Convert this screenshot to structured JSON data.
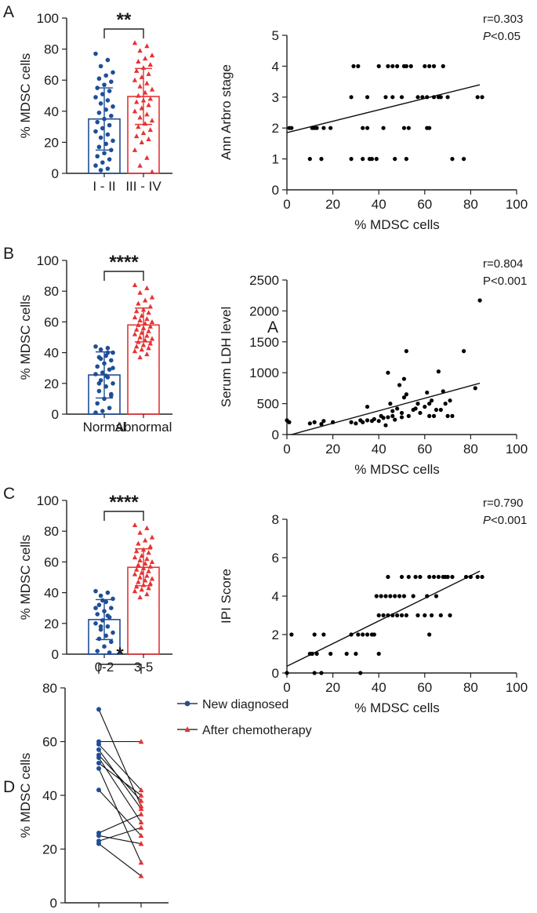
{
  "panels": [
    "A",
    "B",
    "C",
    "D"
  ],
  "stray_label": "A",
  "colors": {
    "blue": "#1f4e96",
    "red": "#e63333",
    "axis": "#222222",
    "dot": "#000000"
  },
  "chart_data": [
    {
      "id": "A-bar",
      "type": "bar",
      "panel": "A",
      "ylabel": "% MDSC cells",
      "ylim": [
        0,
        100
      ],
      "yticks": [
        "0",
        "20",
        "40",
        "60",
        "80",
        "100"
      ],
      "categories": [
        "I - II",
        "III - IV"
      ],
      "values": [
        35,
        49.5
      ],
      "sd": [
        20,
        18
      ],
      "significance": "**",
      "points": [
        [
          77,
          73,
          69,
          65,
          63,
          61,
          59,
          57,
          55,
          53,
          51,
          49,
          47,
          45,
          43,
          41,
          39,
          37,
          35,
          33,
          31,
          29,
          27,
          25,
          23,
          21,
          19,
          17,
          15,
          13,
          11,
          9,
          7,
          5,
          3,
          2
        ],
        [
          84,
          82,
          79,
          76,
          74,
          72,
          70,
          68,
          66,
          64,
          62,
          60,
          58,
          56,
          54,
          52,
          50,
          48,
          47,
          46,
          44,
          42,
          40,
          38,
          36,
          34,
          32,
          30,
          28,
          26,
          24,
          22,
          20,
          15,
          10,
          5,
          1
        ]
      ]
    },
    {
      "id": "A-scatter",
      "type": "scatter",
      "panel": "A",
      "xlabel": "% MDSC cells",
      "ylabel": "Ann Arbro stage",
      "xlim": [
        0,
        100
      ],
      "ylim": [
        0,
        5
      ],
      "xticks": [
        "0",
        "20",
        "40",
        "60",
        "80",
        "100"
      ],
      "yticks": [
        "0",
        "1",
        "2",
        "3",
        "4",
        "5"
      ],
      "stat_r": "r=0.303",
      "stat_p_label": "P",
      "stat_p_rest": "<0.05",
      "fit": {
        "x": [
          0,
          84
        ],
        "y": [
          1.85,
          3.4
        ]
      },
      "points": [
        [
          1,
          2
        ],
        [
          2,
          2
        ],
        [
          10,
          1
        ],
        [
          11,
          2
        ],
        [
          12,
          2
        ],
        [
          13,
          2
        ],
        [
          15,
          1
        ],
        [
          16,
          2
        ],
        [
          19,
          2
        ],
        [
          28,
          3
        ],
        [
          28,
          1
        ],
        [
          29,
          4
        ],
        [
          31,
          4
        ],
        [
          33,
          2
        ],
        [
          33,
          1
        ],
        [
          35,
          2
        ],
        [
          35,
          3
        ],
        [
          36,
          1
        ],
        [
          37,
          1
        ],
        [
          39,
          1
        ],
        [
          40,
          4
        ],
        [
          42,
          2
        ],
        [
          43,
          3
        ],
        [
          44,
          4
        ],
        [
          46,
          3
        ],
        [
          46,
          4
        ],
        [
          47,
          1
        ],
        [
          48,
          4
        ],
        [
          50,
          3
        ],
        [
          51,
          4
        ],
        [
          51,
          2
        ],
        [
          52,
          4
        ],
        [
          52,
          1
        ],
        [
          53,
          2
        ],
        [
          54,
          4
        ],
        [
          57,
          3
        ],
        [
          59,
          3
        ],
        [
          60,
          4
        ],
        [
          61,
          2
        ],
        [
          61,
          3
        ],
        [
          62,
          2
        ],
        [
          62,
          4
        ],
        [
          64,
          3
        ],
        [
          64,
          4
        ],
        [
          66,
          3
        ],
        [
          67,
          3
        ],
        [
          68,
          4
        ],
        [
          70,
          3
        ],
        [
          72,
          1
        ],
        [
          77,
          1
        ],
        [
          83,
          3
        ],
        [
          85,
          3
        ]
      ]
    },
    {
      "id": "B-bar",
      "type": "bar",
      "panel": "B",
      "ylabel": "% MDSC cells",
      "ylim": [
        0,
        100
      ],
      "yticks": [
        "0",
        "20",
        "40",
        "60",
        "80",
        "100"
      ],
      "categories": [
        "Normal",
        "Abnormal"
      ],
      "values": [
        25.5,
        58
      ],
      "sd": [
        15,
        11
      ],
      "significance": "****",
      "points": [
        [
          44,
          43,
          42,
          40,
          38,
          37,
          35,
          33,
          31,
          29,
          27,
          26,
          24,
          22,
          20,
          18,
          15,
          13,
          10,
          7,
          4,
          2,
          1,
          40,
          36,
          30,
          25,
          20,
          12
        ],
        [
          84,
          82,
          79,
          76,
          74,
          72,
          70,
          68,
          67,
          66,
          64,
          63,
          62,
          61,
          60,
          59,
          58,
          57,
          56,
          55,
          54,
          53,
          52,
          51,
          50,
          49,
          48,
          47,
          46,
          45,
          44,
          43,
          42,
          41,
          39,
          37
        ]
      ]
    },
    {
      "id": "B-scatter",
      "type": "scatter",
      "panel": "B",
      "xlabel": "% MDSC cells",
      "ylabel": "Serum LDH level",
      "xlim": [
        0,
        100
      ],
      "ylim": [
        0,
        2500
      ],
      "xticks": [
        "0",
        "20",
        "40",
        "60",
        "80",
        "100"
      ],
      "yticks": [
        "0",
        "500",
        "1000",
        "1500",
        "2000",
        "2500"
      ],
      "stat_r": "r=0.804",
      "stat_p_label": "P",
      "stat_p_rest": "<0.001",
      "fit": {
        "x": [
          2,
          84
        ],
        "y": [
          0,
          830
        ]
      },
      "points": [
        [
          0,
          230
        ],
        [
          1,
          200
        ],
        [
          10,
          180
        ],
        [
          12,
          200
        ],
        [
          15,
          170
        ],
        [
          16,
          220
        ],
        [
          20,
          200
        ],
        [
          28,
          200
        ],
        [
          30,
          180
        ],
        [
          32,
          230
        ],
        [
          33,
          200
        ],
        [
          35,
          230
        ],
        [
          35,
          450
        ],
        [
          37,
          220
        ],
        [
          38,
          250
        ],
        [
          40,
          220
        ],
        [
          41,
          300
        ],
        [
          42,
          270
        ],
        [
          43,
          150
        ],
        [
          44,
          280
        ],
        [
          44,
          1000
        ],
        [
          45,
          500
        ],
        [
          46,
          300
        ],
        [
          46,
          380
        ],
        [
          47,
          240
        ],
        [
          48,
          420
        ],
        [
          49,
          800
        ],
        [
          50,
          350
        ],
        [
          50,
          280
        ],
        [
          51,
          900
        ],
        [
          51,
          600
        ],
        [
          52,
          1350
        ],
        [
          52,
          650
        ],
        [
          53,
          300
        ],
        [
          55,
          400
        ],
        [
          56,
          420
        ],
        [
          57,
          500
        ],
        [
          58,
          350
        ],
        [
          60,
          450
        ],
        [
          61,
          680
        ],
        [
          62,
          500
        ],
        [
          62,
          300
        ],
        [
          63,
          550
        ],
        [
          64,
          300
        ],
        [
          65,
          400
        ],
        [
          66,
          1020
        ],
        [
          67,
          400
        ],
        [
          68,
          700
        ],
        [
          69,
          500
        ],
        [
          70,
          300
        ],
        [
          71,
          550
        ],
        [
          72,
          300
        ],
        [
          77,
          1350
        ],
        [
          82,
          750
        ],
        [
          84,
          2170
        ]
      ]
    },
    {
      "id": "C-bar",
      "type": "bar",
      "panel": "C",
      "ylabel": "% MDSC cells",
      "ylim": [
        0,
        100
      ],
      "yticks": [
        "0",
        "20",
        "40",
        "60",
        "80",
        "100"
      ],
      "categories": [
        "0-2",
        "3-5"
      ],
      "values": [
        22.5,
        56.5
      ],
      "sd": [
        13,
        12
      ],
      "significance": "****",
      "points": [
        [
          41,
          40,
          38,
          36,
          34,
          32,
          30,
          28,
          26,
          24,
          22,
          20,
          18,
          16,
          14,
          12,
          10,
          8,
          5,
          2,
          1,
          35,
          30,
          25,
          18
        ],
        [
          84,
          82,
          79,
          76,
          74,
          72,
          70,
          68,
          67,
          66,
          64,
          63,
          62,
          61,
          60,
          59,
          58,
          57,
          56,
          55,
          54,
          53,
          52,
          51,
          50,
          49,
          48,
          47,
          46,
          45,
          44,
          43,
          42,
          41,
          39,
          37
        ]
      ]
    },
    {
      "id": "C-scatter",
      "type": "scatter",
      "panel": "C",
      "xlabel": "% MDSC cells",
      "ylabel": "IPI Score",
      "xlim": [
        0,
        100
      ],
      "ylim": [
        0,
        8
      ],
      "xticks": [
        "0",
        "20",
        "40",
        "60",
        "80",
        "100"
      ],
      "yticks": [
        "0",
        "2",
        "4",
        "6",
        "8"
      ],
      "stat_r": "r=0.790",
      "stat_p_label": "P",
      "stat_p_rest": "<0.001",
      "fit": {
        "x": [
          0,
          84
        ],
        "y": [
          0.35,
          5.3
        ]
      },
      "points": [
        [
          0,
          0
        ],
        [
          2,
          2
        ],
        [
          10,
          1
        ],
        [
          11,
          1
        ],
        [
          12,
          2
        ],
        [
          12,
          0
        ],
        [
          13,
          1
        ],
        [
          15,
          0
        ],
        [
          16,
          2
        ],
        [
          19,
          1
        ],
        [
          26,
          1
        ],
        [
          28,
          2
        ],
        [
          30,
          1
        ],
        [
          31,
          2
        ],
        [
          32,
          0
        ],
        [
          33,
          2
        ],
        [
          35,
          2
        ],
        [
          37,
          2
        ],
        [
          38,
          2
        ],
        [
          39,
          4
        ],
        [
          40,
          1
        ],
        [
          40,
          3
        ],
        [
          41,
          4
        ],
        [
          42,
          3
        ],
        [
          43,
          4
        ],
        [
          44,
          5
        ],
        [
          44,
          3
        ],
        [
          45,
          4
        ],
        [
          46,
          3
        ],
        [
          47,
          4
        ],
        [
          48,
          3
        ],
        [
          49,
          4
        ],
        [
          50,
          5
        ],
        [
          50,
          3
        ],
        [
          51,
          4
        ],
        [
          52,
          3
        ],
        [
          53,
          5
        ],
        [
          55,
          4
        ],
        [
          56,
          5
        ],
        [
          57,
          3
        ],
        [
          58,
          5
        ],
        [
          60,
          3
        ],
        [
          61,
          4
        ],
        [
          62,
          2
        ],
        [
          62,
          5
        ],
        [
          63,
          3
        ],
        [
          64,
          5
        ],
        [
          65,
          4
        ],
        [
          66,
          5
        ],
        [
          67,
          3
        ],
        [
          68,
          5
        ],
        [
          69,
          5
        ],
        [
          70,
          5
        ],
        [
          71,
          3
        ],
        [
          72,
          5
        ],
        [
          78,
          5
        ],
        [
          80,
          5
        ],
        [
          83,
          5
        ],
        [
          85,
          5
        ]
      ]
    },
    {
      "id": "D-paired",
      "type": "line",
      "panel": "D",
      "ylabel": "% MDSC cells",
      "ylim": [
        0,
        80
      ],
      "yticks": [
        "0",
        "20",
        "40",
        "60",
        "80"
      ],
      "significance": "*",
      "legend": [
        "New diagnosed",
        "After chemotherapy"
      ],
      "pairs": [
        [
          72,
          36
        ],
        [
          60,
          60
        ],
        [
          59,
          42
        ],
        [
          57,
          35
        ],
        [
          55,
          38
        ],
        [
          54,
          30
        ],
        [
          52,
          40
        ],
        [
          50,
          15
        ],
        [
          42,
          25
        ],
        [
          26,
          33
        ],
        [
          25,
          22
        ],
        [
          23,
          28
        ],
        [
          22,
          10
        ]
      ]
    }
  ]
}
